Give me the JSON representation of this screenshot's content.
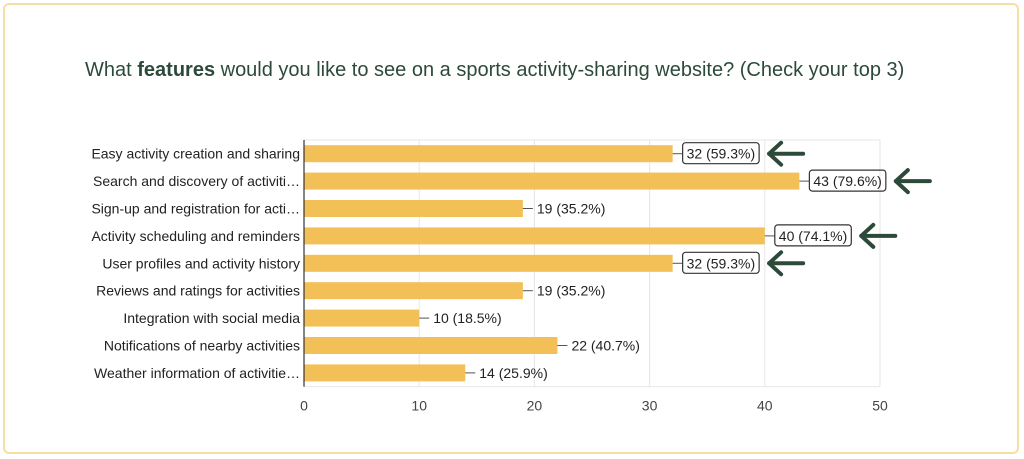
{
  "title": {
    "prefix": "What ",
    "bold": "features",
    "suffix": " would you like to see on a sports activity-sharing website? (Check your top 3)"
  },
  "colors": {
    "bar": "#f2c057",
    "grid": "#e6e6e6",
    "axis": "#333333",
    "arrow": "#2c4a3a",
    "title": "#2c4a3a",
    "border": "#f4e1a1"
  },
  "chart_data": {
    "type": "bar",
    "orientation": "horizontal",
    "categories": [
      "Easy activity creation and sharing",
      "Search and discovery of activiti…",
      "Sign-up and registration for acti…",
      "Activity scheduling and reminders",
      "User profiles and activity history",
      "Reviews and ratings for activities",
      "Integration with social media",
      "Notifications of nearby activities",
      "Weather information of activitie…"
    ],
    "values": [
      32,
      43,
      19,
      40,
      32,
      19,
      10,
      22,
      14
    ],
    "data_labels": [
      "32 (59.3%)",
      "43 (79.6%)",
      "19 (35.2%)",
      "40 (74.1%)",
      "32 (59.3%)",
      "19 (35.2%)",
      "10 (18.5%)",
      "22 (40.7%)",
      "14 (25.9%)"
    ],
    "highlighted": [
      true,
      true,
      false,
      true,
      true,
      false,
      false,
      false,
      false
    ],
    "xlim": [
      0,
      50
    ],
    "xticks": [
      0,
      10,
      20,
      30,
      40,
      50
    ],
    "grid": true
  }
}
